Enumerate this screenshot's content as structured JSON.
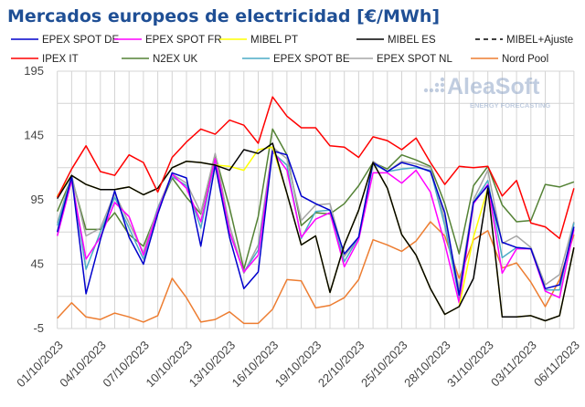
{
  "chart_data": {
    "type": "line",
    "title": "Mercados europeos de electricidad [€/MWh]",
    "xlabel": "",
    "ylabel": "",
    "ylim": [
      -5,
      195
    ],
    "yticks": [
      "-5",
      "45",
      "95",
      "145",
      "195"
    ],
    "grid": true,
    "legend_placement": "top",
    "x": [
      "01/10/2023",
      "02/10/2023",
      "03/10/2023",
      "04/10/2023",
      "05/10/2023",
      "06/10/2023",
      "07/10/2023",
      "08/10/2023",
      "09/10/2023",
      "10/10/2023",
      "11/10/2023",
      "12/10/2023",
      "13/10/2023",
      "14/10/2023",
      "15/10/2023",
      "16/10/2023",
      "17/10/2023",
      "18/10/2023",
      "19/10/2023",
      "20/10/2023",
      "21/10/2023",
      "22/10/2023",
      "23/10/2023",
      "24/10/2023",
      "25/10/2023",
      "26/10/2023",
      "27/10/2023",
      "28/10/2023",
      "29/10/2023",
      "30/10/2023",
      "31/10/2023",
      "01/11/2023",
      "02/11/2023",
      "03/11/2023",
      "04/11/2023",
      "05/11/2023",
      "06/11/2023"
    ],
    "xticks": [
      "01/10/2023",
      "04/10/2023",
      "07/10/2023",
      "10/10/2023",
      "13/10/2023",
      "16/10/2023",
      "19/10/2023",
      "22/10/2023",
      "25/10/2023",
      "28/10/2023",
      "31/10/2023",
      "03/11/2023",
      "06/11/2023"
    ],
    "series": [
      {
        "name": "Nord Pool",
        "color": "#ed7d31",
        "values": [
          3,
          15,
          4,
          2,
          7,
          4,
          0,
          5,
          34,
          19,
          0,
          2,
          8,
          -1,
          -1,
          10,
          33,
          32,
          11,
          13,
          19,
          33,
          64,
          60,
          55,
          63,
          78,
          67,
          34,
          64,
          71,
          42,
          46,
          31,
          12,
          33,
          68
        ]
      },
      {
        "name": "N2EX UK",
        "color": "#548235",
        "values": [
          86,
          112,
          72,
          72,
          85,
          68,
          59,
          87,
          112,
          97,
          84,
          130,
          89,
          41,
          82,
          150,
          130,
          75,
          85,
          84,
          92,
          106,
          124,
          119,
          130,
          126,
          121,
          92,
          53,
          106,
          121,
          91,
          78,
          79,
          107,
          105,
          109
        ]
      },
      {
        "name": "EPEX SPOT NL",
        "color": "#a5a5a5",
        "values": [
          77,
          114,
          67,
          73,
          100,
          77,
          54,
          89,
          115,
          108,
          85,
          131,
          75,
          38,
          60,
          136,
          127,
          79,
          91,
          92,
          51,
          66,
          125,
          117,
          125,
          123,
          120,
          80,
          26,
          95,
          118,
          61,
          67,
          58,
          29,
          37,
          78
        ]
      },
      {
        "name": "EPEX SPOT BE",
        "color": "#4bacc6",
        "values": [
          75,
          113,
          41,
          70,
          97,
          73,
          49,
          88,
          113,
          106,
          73,
          126,
          70,
          39,
          56,
          132,
          122,
          65,
          86,
          87,
          47,
          66,
          123,
          117,
          119,
          120,
          118,
          75,
          19,
          93,
          110,
          50,
          58,
          57,
          25,
          25,
          77
        ]
      },
      {
        "name": "EPEX SPOT FR",
        "color": "#ff00ff",
        "values": [
          67,
          110,
          49,
          66,
          93,
          82,
          52,
          86,
          115,
          104,
          78,
          127,
          70,
          39,
          52,
          133,
          118,
          66,
          80,
          85,
          43,
          64,
          116,
          116,
          108,
          118,
          101,
          61,
          15,
          92,
          107,
          38,
          57,
          57,
          24,
          19,
          72
        ]
      },
      {
        "name": "EPEX SPOT DE",
        "color": "#0000cc",
        "values": [
          70,
          113,
          22,
          64,
          102,
          66,
          45,
          84,
          116,
          112,
          59,
          122,
          66,
          26,
          39,
          133,
          130,
          98,
          92,
          87,
          53,
          66,
          124,
          117,
          124,
          121,
          117,
          85,
          21,
          93,
          106,
          62,
          58,
          57,
          26,
          29,
          74
        ]
      },
      {
        "name": "MIBEL PT",
        "color": "#ffff00",
        "values": [
          98,
          114,
          107,
          103,
          103,
          105,
          99,
          104,
          120,
          125,
          124,
          122,
          121,
          118,
          134,
          136,
          100,
          60,
          67,
          23,
          60,
          87,
          124,
          104,
          68,
          52,
          26,
          6,
          12,
          66,
          104,
          4,
          4,
          5,
          1,
          5,
          58
        ]
      },
      {
        "name": "MIBEL ES",
        "color": "#000000",
        "values": [
          96,
          114,
          107,
          103,
          103,
          105,
          99,
          104,
          120,
          125,
          124,
          122,
          118,
          134,
          131,
          139,
          100,
          60,
          67,
          23,
          60,
          87,
          124,
          104,
          68,
          52,
          26,
          6,
          12,
          34,
          104,
          4,
          4,
          5,
          1,
          5,
          58
        ]
      },
      {
        "name": "IPEX IT",
        "color": "#ff0000",
        "values": [
          97,
          119,
          137,
          117,
          114,
          130,
          124,
          101,
          128,
          140,
          150,
          146,
          157,
          153,
          139,
          175,
          160,
          151,
          151,
          137,
          136,
          128,
          144,
          141,
          134,
          143,
          124,
          107,
          121,
          120,
          121,
          98,
          110,
          77,
          74,
          65,
          104
        ]
      }
    ],
    "legend": [
      [
        {
          "label": "EPEX SPOT DE",
          "color": "#0000cc",
          "style": "solid"
        },
        {
          "label": "EPEX SPOT FR",
          "color": "#ff00ff",
          "style": "solid"
        },
        {
          "label": "MIBEL PT",
          "color": "#ffff00",
          "style": "solid"
        },
        {
          "label": "MIBEL ES",
          "color": "#000000",
          "style": "solid"
        },
        {
          "label": "MIBEL+Ajuste",
          "color": "#000000",
          "style": "dashed"
        }
      ],
      [
        {
          "label": "IPEX IT",
          "color": "#ff0000",
          "style": "solid"
        },
        {
          "label": "N2EX UK",
          "color": "#548235",
          "style": "solid"
        },
        {
          "label": "EPEX SPOT BE",
          "color": "#4bacc6",
          "style": "solid"
        },
        {
          "label": "EPEX SPOT NL",
          "color": "#a5a5a5",
          "style": "solid"
        },
        {
          "label": "Nord Pool",
          "color": "#ed7d31",
          "style": "solid"
        }
      ]
    ]
  },
  "watermark": {
    "brand": "AleaSoft",
    "tagline": "ENERGY FORECASTING"
  }
}
